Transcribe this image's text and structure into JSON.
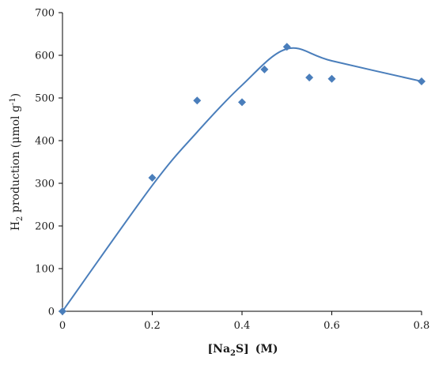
{
  "chart_data": {
    "type": "scatter",
    "title": "",
    "xlabel_parts": {
      "open": "[",
      "base": "Na",
      "sub": "2",
      "rest": "S]",
      "unit": "(M)"
    },
    "ylabel_parts": {
      "base": "H",
      "sub": "2",
      "rest": " production (μmol g",
      "sup": "-1",
      "close": ")"
    },
    "xlim": [
      0,
      0.8
    ],
    "ylim": [
      0,
      700
    ],
    "x_ticks": [
      0,
      0.2,
      0.4,
      0.6,
      0.8
    ],
    "x_tick_labels": [
      "0",
      "0.2",
      "0.4",
      "0.6",
      "0.8"
    ],
    "y_ticks": [
      0,
      100,
      200,
      300,
      400,
      500,
      600,
      700
    ],
    "y_tick_labels": [
      "0",
      "100",
      "200",
      "300",
      "400",
      "500",
      "600",
      "700"
    ],
    "grid": false,
    "legend": "none",
    "series": [
      {
        "marker": "diamond",
        "color": "#4a7ebb",
        "points": [
          {
            "x": 0,
            "y": 0
          },
          {
            "x": 0.2,
            "y": 313
          },
          {
            "x": 0.3,
            "y": 494
          },
          {
            "x": 0.4,
            "y": 490
          },
          {
            "x": 0.45,
            "y": 567
          },
          {
            "x": 0.5,
            "y": 620
          },
          {
            "x": 0.55,
            "y": 548
          },
          {
            "x": 0.6,
            "y": 545
          },
          {
            "x": 0.8,
            "y": 539
          }
        ]
      }
    ],
    "trend_line": {
      "color": "#4a7ebb",
      "smooth": true,
      "points": [
        {
          "x": 0,
          "y": 0
        },
        {
          "x": 0.2,
          "y": 295
        },
        {
          "x": 0.3,
          "y": 420
        },
        {
          "x": 0.4,
          "y": 530
        },
        {
          "x": 0.5,
          "y": 615
        },
        {
          "x": 0.6,
          "y": 587
        },
        {
          "x": 0.8,
          "y": 539
        }
      ]
    }
  }
}
